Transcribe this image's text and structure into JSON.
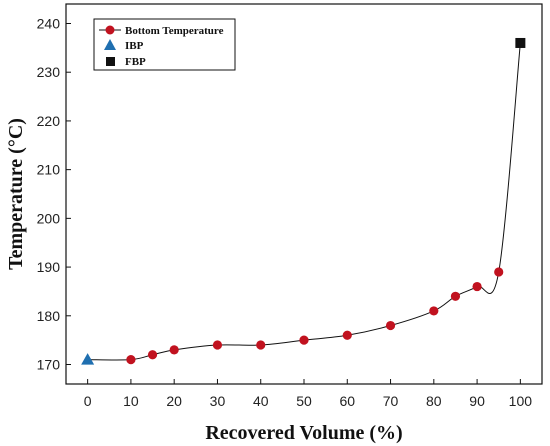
{
  "chart_data": {
    "type": "line",
    "xlabel": "Recovered Volume (%)",
    "ylabel": "Temperature (°C)",
    "xlim": [
      -5,
      105
    ],
    "ylim": [
      166,
      244
    ],
    "x_ticks": [
      0,
      10,
      20,
      30,
      40,
      50,
      60,
      70,
      80,
      90,
      100
    ],
    "y_ticks": [
      170,
      180,
      190,
      200,
      210,
      220,
      230,
      240
    ],
    "grid": false,
    "legend_position": "top-left",
    "series": [
      {
        "name": "Bottom Temperature",
        "marker": "circle",
        "color": "#c1121f",
        "x": [
          10,
          15,
          20,
          30,
          40,
          50,
          60,
          70,
          80,
          85,
          90,
          95
        ],
        "y": [
          171,
          172,
          173,
          174,
          174,
          175,
          176,
          178,
          181,
          184,
          186,
          189
        ]
      },
      {
        "name": "IBP",
        "marker": "triangle",
        "color": "#1f6fb0",
        "x": [
          0
        ],
        "y": [
          171
        ]
      },
      {
        "name": "FBP",
        "marker": "square",
        "color": "#111111",
        "x": [
          100
        ],
        "y": [
          236
        ]
      }
    ],
    "curve": {
      "color": "#111111",
      "x": [
        0,
        10,
        15,
        20,
        30,
        40,
        50,
        60,
        70,
        80,
        85,
        90,
        95,
        100
      ],
      "y": [
        171,
        171,
        172,
        173,
        174,
        174,
        175,
        176,
        178,
        181,
        184,
        186,
        189,
        236
      ]
    }
  }
}
